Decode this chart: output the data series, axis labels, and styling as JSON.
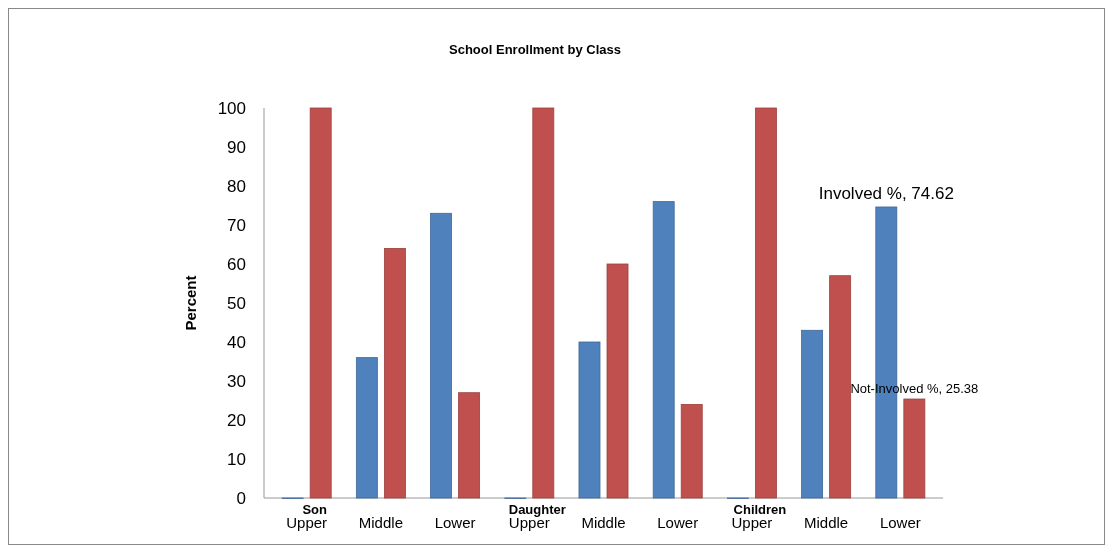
{
  "chart_data": {
    "type": "bar",
    "title": "School Enrollment by Class",
    "ylabel": "Percent",
    "categories": [
      "Upper",
      "Middle",
      "Lower",
      "Upper",
      "Middle",
      "Lower",
      "Upper",
      "Middle",
      "Lower"
    ],
    "series": [
      {
        "color": "#4f81bd",
        "values": [
          0,
          36,
          73,
          0,
          40,
          76,
          0,
          43,
          74.62
        ],
        "value_labels": [
          null,
          null,
          null,
          null,
          null,
          null,
          null,
          null,
          "Involved %, 74.62"
        ]
      },
      {
        "color": "#c0504d",
        "values": [
          100,
          64,
          27,
          100,
          60,
          24,
          100,
          57,
          25.38
        ],
        "value_labels": [
          null,
          null,
          null,
          null,
          null,
          null,
          null,
          null,
          "Not-Involved %, 25.38"
        ]
      }
    ],
    "annotations": [
      "Son",
      "Daughter",
      "Children"
    ],
    "ylim": [
      0,
      100
    ],
    "yticks": [
      0,
      10,
      20,
      30,
      40,
      50,
      60,
      70,
      80,
      90,
      100
    ],
    "grid": false,
    "legend": false
  }
}
